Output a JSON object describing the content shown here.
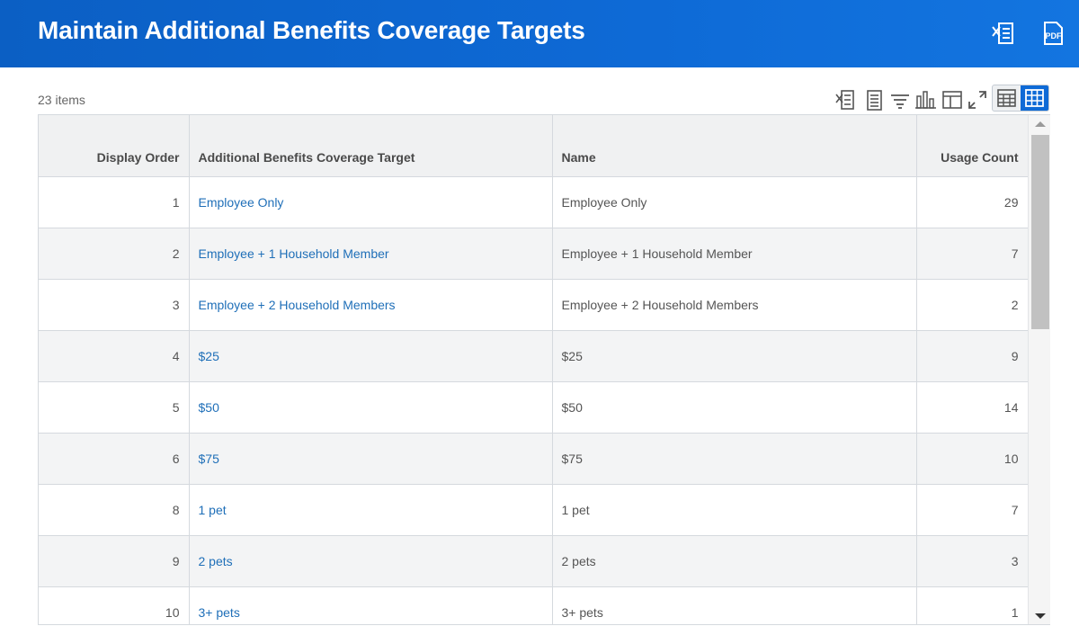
{
  "header": {
    "title": "Maintain Additional Benefits Coverage Targets",
    "excel_icon": "excel-export-icon",
    "pdf_icon": "pdf-export-icon",
    "pdf_text": "PDF",
    "background": "#0e6ad6"
  },
  "items_count": "23 items",
  "toolbar": {
    "icons": [
      "excel-export-icon",
      "row-details-icon",
      "filter-icon",
      "chart-icon",
      "column-config-icon",
      "fullscreen-icon",
      "table-view-icon",
      "grid-view-icon"
    ]
  },
  "table": {
    "columns": [
      "Display Order",
      "Additional Benefits Coverage Target",
      "Name",
      "Usage Count"
    ],
    "rows": [
      {
        "order": "1",
        "target": "Employee Only",
        "name": "Employee Only",
        "usage": "29"
      },
      {
        "order": "2",
        "target": "Employee + 1 Household Member",
        "name": "Employee + 1 Household Member",
        "usage": "7"
      },
      {
        "order": "3",
        "target": "Employee + 2 Household Members",
        "name": "Employee + 2 Household Members",
        "usage": "2"
      },
      {
        "order": "4",
        "target": "$25",
        "name": "$25",
        "usage": "9"
      },
      {
        "order": "5",
        "target": "$50",
        "name": "$50",
        "usage": "14"
      },
      {
        "order": "6",
        "target": "$75",
        "name": "$75",
        "usage": "10"
      },
      {
        "order": "8",
        "target": "1 pet",
        "name": "1 pet",
        "usage": "7"
      },
      {
        "order": "9",
        "target": "2 pets",
        "name": "2 pets",
        "usage": "3"
      },
      {
        "order": "10",
        "target": "3+ pets",
        "name": "3+ pets",
        "usage": "1"
      }
    ]
  },
  "colors": {
    "link": "#1f6fb8",
    "header_bg": "#f0f1f2",
    "alt_row": "#f3f4f5",
    "accent": "#0e6ad6"
  }
}
